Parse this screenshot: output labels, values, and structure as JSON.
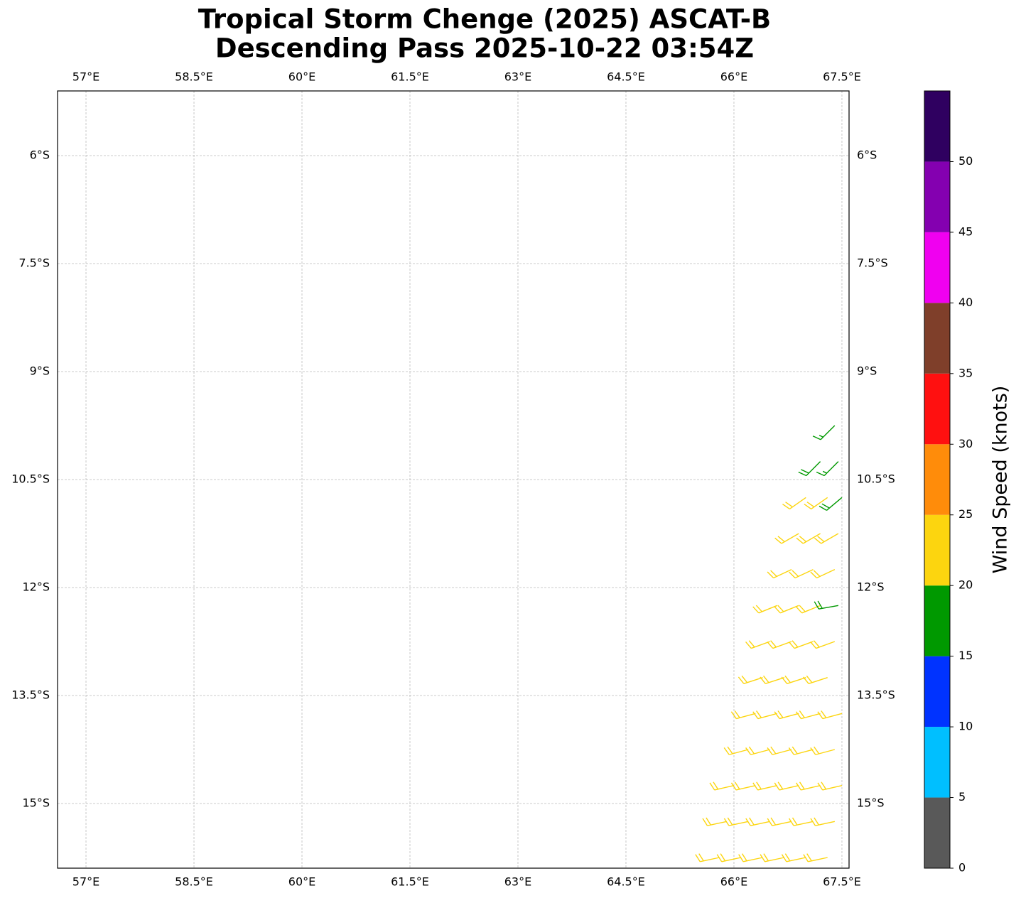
{
  "chart_data": {
    "type": "barbs",
    "title": [
      "Tropical Storm Chenge (2025) ASCAT-B",
      "Descending Pass 2025-10-22 03:54Z"
    ],
    "xlim": [
      56.605,
      67.599
    ],
    "ylim": [
      -15.898,
      -5.102
    ],
    "xticks": [
      {
        "value": 57,
        "label": "57°E"
      },
      {
        "value": 58.5,
        "label": "58.5°E"
      },
      {
        "value": 60,
        "label": "60°E"
      },
      {
        "value": 61.5,
        "label": "61.5°E"
      },
      {
        "value": 63,
        "label": "63°E"
      },
      {
        "value": 64.5,
        "label": "64.5°E"
      },
      {
        "value": 66,
        "label": "66°E"
      },
      {
        "value": 67.5,
        "label": "67.5°E"
      }
    ],
    "yticks": [
      {
        "value": -6,
        "label": "6°S"
      },
      {
        "value": -7.5,
        "label": "7.5°S"
      },
      {
        "value": -9,
        "label": "9°S"
      },
      {
        "value": -10.5,
        "label": "10.5°S"
      },
      {
        "value": -12,
        "label": "12°S"
      },
      {
        "value": -13.5,
        "label": "13.5°S"
      },
      {
        "value": -15,
        "label": "15°S"
      }
    ],
    "grid": true,
    "x": [
      67.4,
      67.2,
      67.45,
      67.0,
      67.3,
      67.5,
      66.9,
      67.2,
      67.45,
      66.8,
      67.1,
      67.4,
      66.6,
      66.9,
      67.2,
      67.45,
      66.5,
      66.8,
      67.1,
      67.4,
      66.4,
      66.7,
      67.0,
      67.3,
      66.3,
      66.6,
      66.9,
      67.2,
      67.5,
      66.2,
      66.5,
      66.8,
      67.1,
      67.4,
      66.0,
      66.3,
      66.6,
      66.9,
      67.2,
      67.5,
      65.9,
      66.2,
      66.5,
      66.8,
      67.1,
      67.4,
      65.8,
      66.1,
      66.4,
      66.7,
      67.0,
      67.3
    ],
    "y": [
      -9.75,
      -10.25,
      -10.25,
      -10.75,
      -10.75,
      -10.75,
      -11.25,
      -11.25,
      -11.25,
      -11.75,
      -11.75,
      -11.75,
      -12.25,
      -12.25,
      -12.25,
      -12.25,
      -12.75,
      -12.75,
      -12.75,
      -12.75,
      -13.25,
      -13.25,
      -13.25,
      -13.25,
      -13.75,
      -13.75,
      -13.75,
      -13.75,
      -13.75,
      -14.25,
      -14.25,
      -14.25,
      -14.25,
      -14.25,
      -14.75,
      -14.75,
      -14.75,
      -14.75,
      -14.75,
      -14.75,
      -15.25,
      -15.25,
      -15.25,
      -15.25,
      -15.25,
      -15.25,
      -15.75,
      -15.75,
      -15.75,
      -15.75,
      -15.75,
      -15.75
    ],
    "values": [
      17,
      18,
      17,
      21,
      21,
      18,
      21,
      22,
      21,
      22,
      22,
      21,
      22,
      22,
      22,
      18,
      22,
      22,
      22,
      22,
      22,
      22,
      22,
      22,
      22,
      22,
      22,
      22,
      22,
      22,
      22,
      22,
      22,
      22,
      22,
      22,
      22,
      22,
      22,
      22,
      22,
      22,
      22,
      22,
      22,
      22,
      22,
      22,
      22,
      22,
      22,
      22
    ],
    "directions": [
      225,
      225,
      225,
      235,
      235,
      230,
      240,
      240,
      240,
      245,
      245,
      245,
      248,
      248,
      248,
      260,
      250,
      250,
      250,
      250,
      252,
      252,
      252,
      252,
      255,
      255,
      255,
      255,
      255,
      255,
      255,
      255,
      255,
      255,
      257,
      257,
      257,
      257,
      257,
      257,
      258,
      258,
      258,
      258,
      258,
      258,
      258,
      258,
      258,
      258,
      258,
      258
    ],
    "colorbar": {
      "label": "Wind Speed (knots)",
      "lim": [
        0,
        55
      ],
      "bounds": [
        0,
        5,
        10,
        15,
        20,
        25,
        30,
        35,
        40,
        45,
        50,
        55
      ],
      "colors": [
        "#595959",
        "#00bfff",
        "#0033ff",
        "#009900",
        "#fcd50f",
        "#ff8c0a",
        "#ff1010",
        "#7f3f2a",
        "#f000f0",
        "#8400b0",
        "#2f0060"
      ],
      "ticks": [
        0,
        5,
        10,
        15,
        20,
        25,
        30,
        35,
        40,
        45,
        50
      ]
    }
  }
}
